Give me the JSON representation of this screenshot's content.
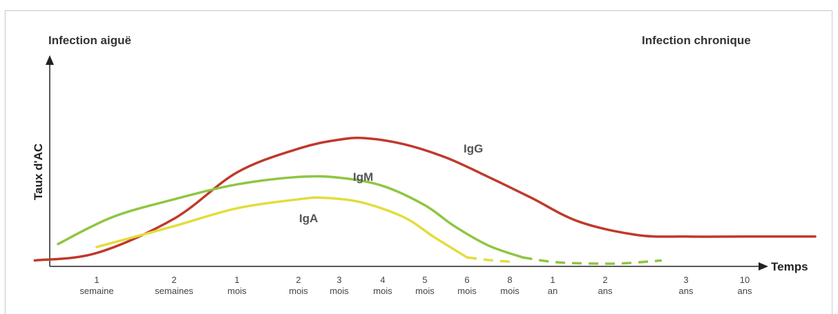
{
  "chart_data": {
    "type": "line",
    "annotations": {
      "left": "Infection aiguë",
      "right": "Infection chronique"
    },
    "xlabel": "Temps",
    "ylabel": "Taux d'AC",
    "ticks": [
      {
        "top": "1",
        "bottom": "semaine"
      },
      {
        "top": "2",
        "bottom": "semaines"
      },
      {
        "top": "1",
        "bottom": "mois"
      },
      {
        "top": "2",
        "bottom": "mois"
      },
      {
        "top": "3",
        "bottom": "mois"
      },
      {
        "top": "4",
        "bottom": "mois"
      },
      {
        "top": "5",
        "bottom": "mois"
      },
      {
        "top": "6",
        "bottom": "mois"
      },
      {
        "top": "8",
        "bottom": "mois"
      },
      {
        "top": "1",
        "bottom": "an"
      },
      {
        "top": "2",
        "bottom": "ans"
      },
      {
        "top": "3",
        "bottom": "ans"
      },
      {
        "top": "10",
        "bottom": "ans"
      }
    ],
    "ylim": [
      0,
      100
    ],
    "series": [
      {
        "name": "IgG",
        "color": "#c0392b",
        "points": [
          [
            -0.8,
            4
          ],
          [
            0,
            9
          ],
          [
            1,
            32
          ],
          [
            2,
            63
          ],
          [
            3,
            79
          ],
          [
            4,
            85
          ],
          [
            4.6,
            86
          ],
          [
            5.5,
            82
          ],
          [
            6.5,
            73
          ],
          [
            7.5,
            60
          ],
          [
            8.5,
            46
          ],
          [
            9.5,
            30
          ],
          [
            10.4,
            21
          ],
          [
            11,
            20
          ],
          [
            12,
            20
          ],
          [
            13.2,
            20
          ]
        ],
        "dashed_from": null
      },
      {
        "name": "IgM",
        "color": "#8ec641",
        "points": [
          [
            -0.5,
            15
          ],
          [
            0.2,
            33
          ],
          [
            1,
            45
          ],
          [
            2,
            55
          ],
          [
            3,
            60
          ],
          [
            4,
            59.5
          ],
          [
            5,
            54
          ],
          [
            6,
            41
          ],
          [
            6.7,
            27
          ],
          [
            7.5,
            14
          ],
          [
            8.3,
            6
          ],
          [
            9,
            3
          ],
          [
            9.6,
            2
          ],
          [
            10.2,
            2
          ],
          [
            10.7,
            4
          ]
        ],
        "dashed_from": 8.3
      },
      {
        "name": "IgA",
        "color": "#e3dc3c",
        "points": [
          [
            0,
            13
          ],
          [
            1,
            27
          ],
          [
            2,
            39
          ],
          [
            3,
            45
          ],
          [
            3.6,
            46
          ],
          [
            4.5,
            43
          ],
          [
            5.5,
            33
          ],
          [
            6.2,
            20
          ],
          [
            7,
            6
          ],
          [
            7.6,
            4
          ],
          [
            8.1,
            3
          ]
        ],
        "dashed_from": 7
      }
    ]
  }
}
